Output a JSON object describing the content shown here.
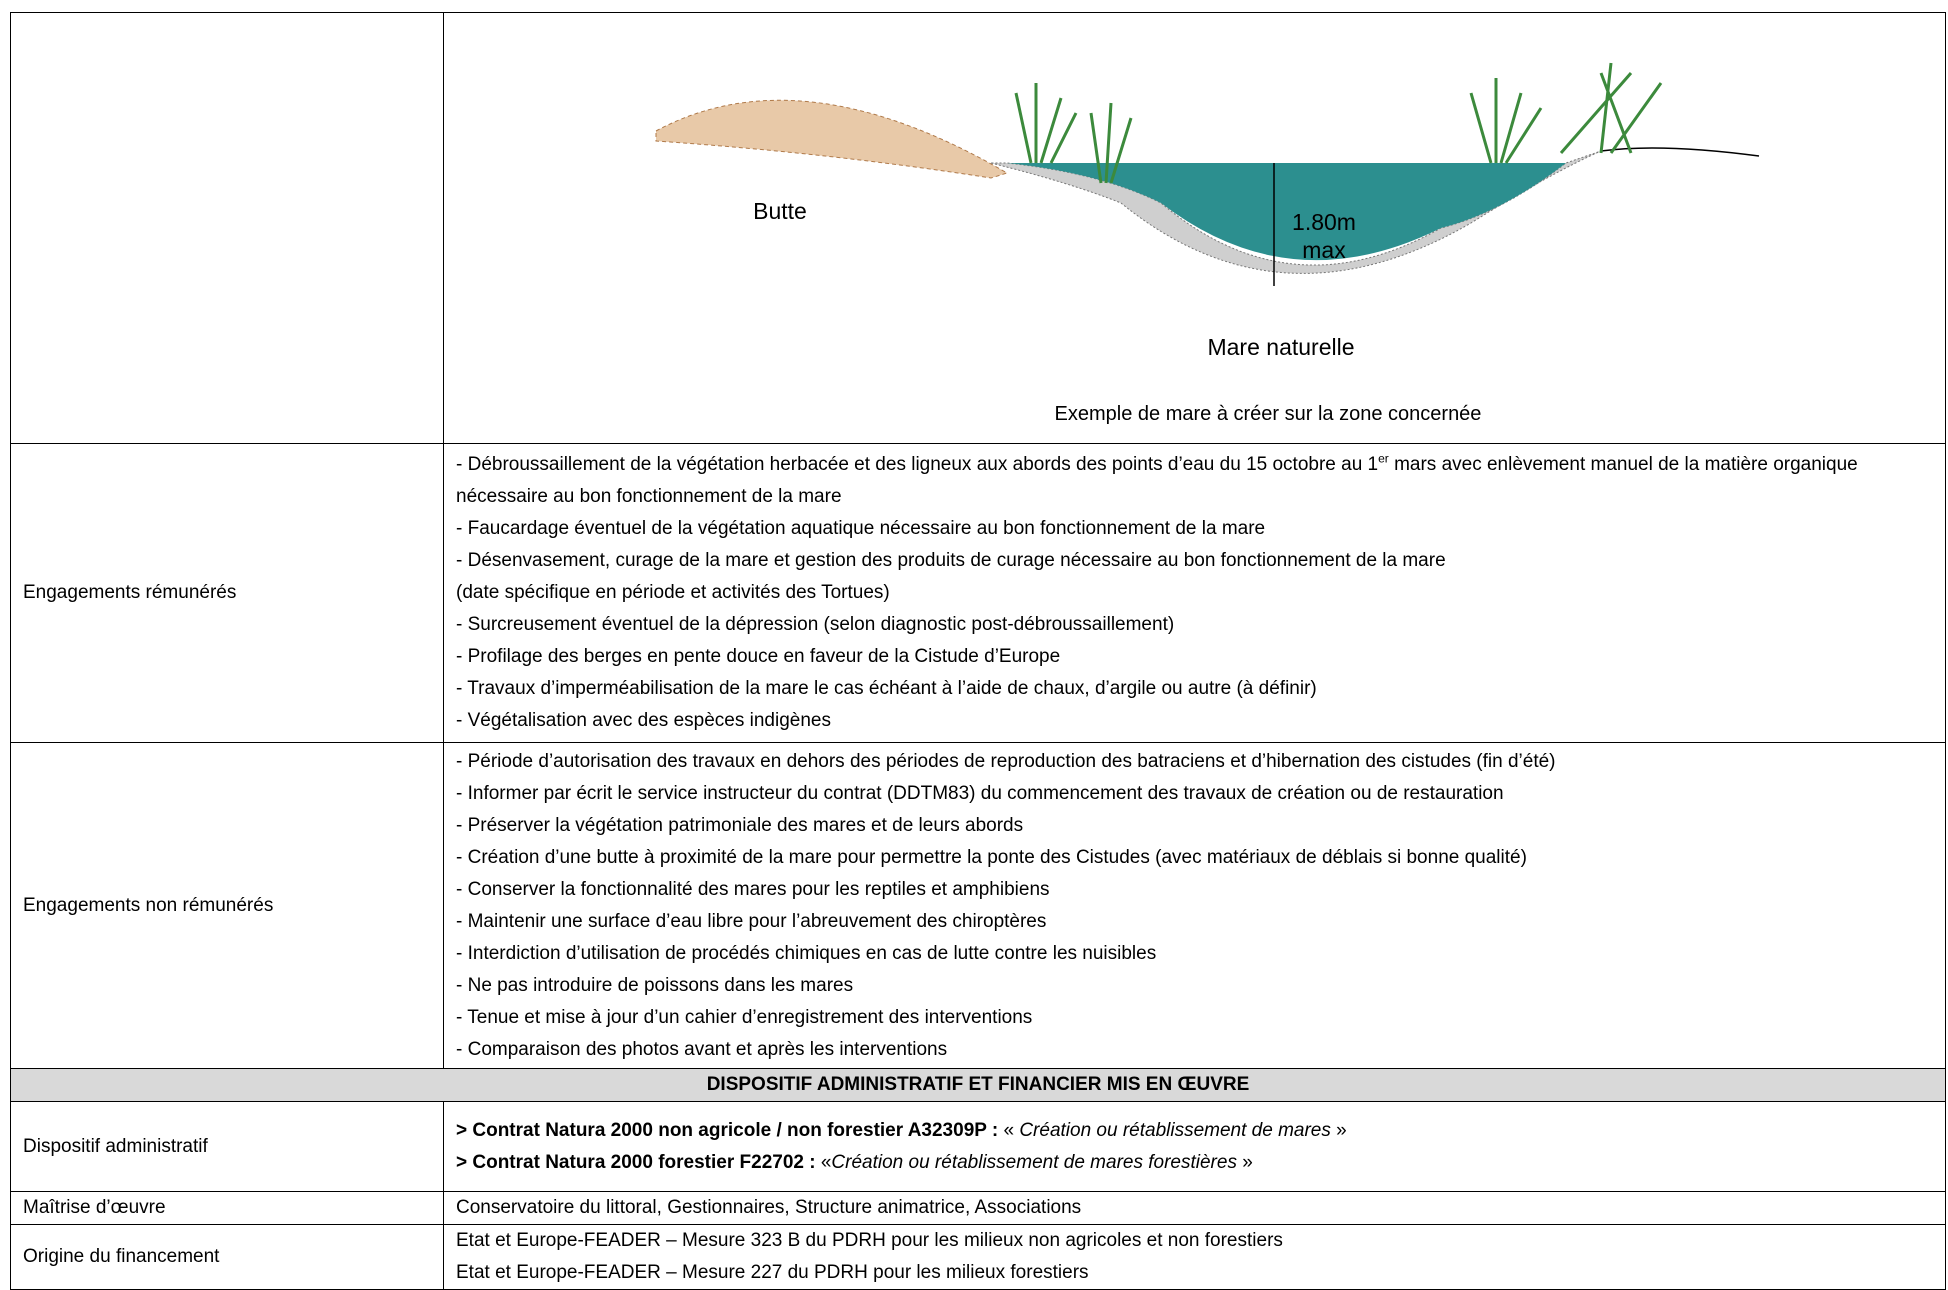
{
  "figure": {
    "labels": {
      "butte": "Butte",
      "depth": "1.80m",
      "depth_note": "max",
      "pond": "Mare naturelle"
    },
    "caption": "Exemple de mare à créer sur la zone concernée"
  },
  "rows": [
    {
      "label": "Engagements rémunérés",
      "items": [
        [
          {
            "text": "- Débroussaillement de la végétation herbacée et des ligneux aux abords des points d’eau du 15 octobre au 1"
          },
          {
            "sup": "er"
          },
          {
            "text": " mars avec enlèvement manuel de la matière organique nécessaire au bon fonctionnement de la mare"
          }
        ],
        "- Faucardage éventuel de la végétation aquatique nécessaire au bon fonctionnement de la mare",
        "- Désenvasement, curage de la mare et gestion des produits de curage nécessaire au bon fonctionnement de la mare",
        " (date spécifique en période et activités des Tortues)",
        "- Surcreusement éventuel de la dépression (selon diagnostic post-débroussaillement)",
        "- Profilage des berges en pente douce en faveur de la Cistude d’Europe",
        "- Travaux d’imperméabilisation de la mare le cas échéant à l’aide de chaux, d’argile ou autre (à définir)",
        "- Végétalisation avec des espèces indigènes"
      ]
    },
    {
      "label": "Engagements non rémunérés",
      "items": [
        "- Période d’autorisation des travaux en dehors des périodes de reproduction des batraciens et d’hibernation des cistudes (fin d’été)",
        "- Informer par écrit le service instructeur du contrat (DDTM83) du commencement des travaux de création ou de restauration",
        "- Préserver la végétation patrimoniale des mares et de leurs abords",
        "- Création d’une butte à proximité de la mare pour permettre la ponte des Cistudes (avec matériaux de déblais si bonne qualité)",
        "- Conserver la fonctionnalité des mares pour les reptiles et amphibiens",
        "- Maintenir une surface d’eau libre pour l’abreuvement des chiroptères",
        "- Interdiction d’utilisation de procédés chimiques en cas de lutte contre les nuisibles",
        "- Ne pas introduire de poissons dans les mares",
        "- Tenue et mise à jour d’un cahier d’enregistrement des interventions",
        " - Comparaison des photos avant et après les interventions"
      ]
    }
  ],
  "section_header": "DISPOSITIF ADMINISTRATIF ET FINANCIER MIS EN ŒUVRE",
  "admin_rows": [
    {
      "label": "Dispositif administratif",
      "items": [
        [
          {
            "bold": "> Contrat Natura 2000 non agricole / non forestier A32309P :"
          },
          {
            "text": " « "
          },
          {
            "italic": "Création ou rétablissement de mares"
          },
          {
            "text": " »"
          }
        ],
        [
          {
            "bold": "> Contrat Natura 2000 forestier F22702 :"
          },
          {
            "text": " «"
          },
          {
            "italic": "Création ou rétablissement de mares forestières"
          },
          {
            "text": " »"
          }
        ]
      ]
    },
    {
      "label": "Maîtrise d’œuvre",
      "items": [
        "Conservatoire du littoral, Gestionnaires, Structure animatrice, Associations"
      ]
    },
    {
      "label": "Origine du financement",
      "items": [
        "Etat et Europe-FEADER – Mesure 323 B du PDRH pour les milieux non agricoles et non forestiers",
        "Etat et Europe-FEADER – Mesure 227 du PDRH pour les milieux forestiers"
      ]
    }
  ]
}
